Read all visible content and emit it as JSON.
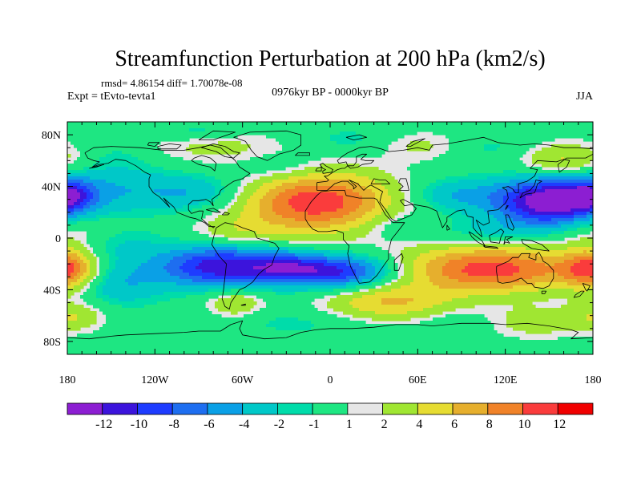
{
  "chart_data": {
    "type": "heatmap",
    "title": "Streamfunction Perturbation at 200 hPa (km2/s)",
    "stats_text": "rmsd= 4.86154 diff= 1.70078e-08",
    "experiment_text": "Expt = tEvto-tevta1",
    "period_text": "0976kyr BP - 0000kyr BP",
    "season_text": "JJA",
    "x_ticks": [
      {
        "value": -180,
        "label": "180"
      },
      {
        "value": -120,
        "label": "120W"
      },
      {
        "value": -60,
        "label": "60W"
      },
      {
        "value": 0,
        "label": "0"
      },
      {
        "value": 60,
        "label": "60E"
      },
      {
        "value": 120,
        "label": "120E"
      },
      {
        "value": 180,
        "label": "180"
      }
    ],
    "y_ticks": [
      {
        "value": 80,
        "label": "80N"
      },
      {
        "value": 40,
        "label": "40N"
      },
      {
        "value": 0,
        "label": "0"
      },
      {
        "value": -40,
        "label": "40S"
      },
      {
        "value": -80,
        "label": "80S"
      }
    ],
    "xlim": [
      -180,
      180
    ],
    "ylim": [
      -90,
      90
    ],
    "colorbar": {
      "bins": [
        {
          "color": "#8c1ed2",
          "label": ""
        },
        {
          "color": "#3c14dc",
          "label": "-12"
        },
        {
          "color": "#1e3cff",
          "label": "-10"
        },
        {
          "color": "#1e6ef0",
          "label": "-8"
        },
        {
          "color": "#0aa0e6",
          "label": "-6"
        },
        {
          "color": "#00c8c8",
          "label": "-4"
        },
        {
          "color": "#00dcaa",
          "label": "-2"
        },
        {
          "color": "#1ee682",
          "label": "-1"
        },
        {
          "color": "#e6e6e6",
          "label": "1"
        },
        {
          "color": "#a0e632",
          "label": "2"
        },
        {
          "color": "#e6dc32",
          "label": "4"
        },
        {
          "color": "#e6af2d",
          "label": "6"
        },
        {
          "color": "#f08228",
          "label": "8"
        },
        {
          "color": "#fa3c3c",
          "label": "10"
        },
        {
          "color": "#f00000",
          "label": "12"
        }
      ]
    },
    "field_anomalies": [
      {
        "lon": -10,
        "lat": 28,
        "slon": 38,
        "slat": 17,
        "amp": 11.5
      },
      {
        "lon": 150,
        "lat": 28,
        "slon": 26,
        "slat": 13,
        "amp": -14
      },
      {
        "lon": 85,
        "lat": 33,
        "slon": 22,
        "slat": 9,
        "amp": -4
      },
      {
        "lon": -90,
        "lat": 35,
        "slon": 26,
        "slat": 10,
        "amp": -4
      },
      {
        "lon": -155,
        "lat": 38,
        "slon": 35,
        "slat": 14,
        "amp": -3.5
      },
      {
        "lon": -180,
        "lat": 33,
        "slon": 12,
        "slat": 8,
        "amp": -6
      },
      {
        "lon": -175,
        "lat": 5,
        "slon": 20,
        "slat": 10,
        "amp": 3
      },
      {
        "lon": -65,
        "lat": 5,
        "slon": 22,
        "slat": 8,
        "amp": 2.5
      },
      {
        "lon": 45,
        "lat": 10,
        "slon": 18,
        "slat": 8,
        "amp": -2
      },
      {
        "lon": 110,
        "lat": 5,
        "slon": 25,
        "slat": 7,
        "amp": -2.5
      },
      {
        "lon": -75,
        "lat": -22,
        "slon": 30,
        "slat": 11,
        "amp": -11.5
      },
      {
        "lon": 5,
        "lat": -26,
        "slon": 28,
        "slat": 9,
        "amp": -10.5
      },
      {
        "lon": -30,
        "lat": -22,
        "slon": 18,
        "slat": 8,
        "amp": -5
      },
      {
        "lon": 110,
        "lat": -24,
        "slon": 45,
        "slat": 13,
        "amp": 11
      },
      {
        "lon": -180,
        "lat": -24,
        "slon": 14,
        "slat": 11,
        "amp": 9
      },
      {
        "lon": -145,
        "lat": -35,
        "slon": 22,
        "slat": 12,
        "amp": -4
      },
      {
        "lon": -150,
        "lat": -5,
        "slon": 25,
        "slat": 10,
        "amp": -2.5
      },
      {
        "lon": -65,
        "lat": -50,
        "slon": 14,
        "slat": 8,
        "amp": 4
      },
      {
        "lon": -175,
        "lat": -60,
        "slon": 15,
        "slat": 8,
        "amp": 3.5
      },
      {
        "lon": 40,
        "lat": -50,
        "slon": 32,
        "slat": 10,
        "amp": 6
      },
      {
        "lon": 140,
        "lat": -65,
        "slon": 28,
        "slat": 9,
        "amp": 3
      },
      {
        "lon": 90,
        "lat": -65,
        "slon": 20,
        "slat": 8,
        "amp": -1.5
      },
      {
        "lon": -20,
        "lat": -65,
        "slon": 35,
        "slat": 8,
        "amp": -1.5
      },
      {
        "lon": -75,
        "lat": 70,
        "slon": 45,
        "slat": 10,
        "amp": 2.5
      },
      {
        "lon": -35,
        "lat": 55,
        "slon": 22,
        "slat": 9,
        "amp": -2.5
      },
      {
        "lon": 15,
        "lat": 75,
        "slon": 30,
        "slat": 8,
        "amp": -2
      },
      {
        "lon": 60,
        "lat": 72,
        "slon": 22,
        "slat": 8,
        "amp": 3
      },
      {
        "lon": 160,
        "lat": 60,
        "slon": 22,
        "slat": 10,
        "amp": 5
      },
      {
        "lon": -145,
        "lat": 65,
        "slon": 20,
        "slat": 8,
        "amp": -1.5
      },
      {
        "lon": -90,
        "lat": 83,
        "slon": 20,
        "slat": 5,
        "amp": -2
      },
      {
        "lon": 110,
        "lat": 70,
        "slon": 25,
        "slat": 7,
        "amp": -1.5
      }
    ]
  }
}
